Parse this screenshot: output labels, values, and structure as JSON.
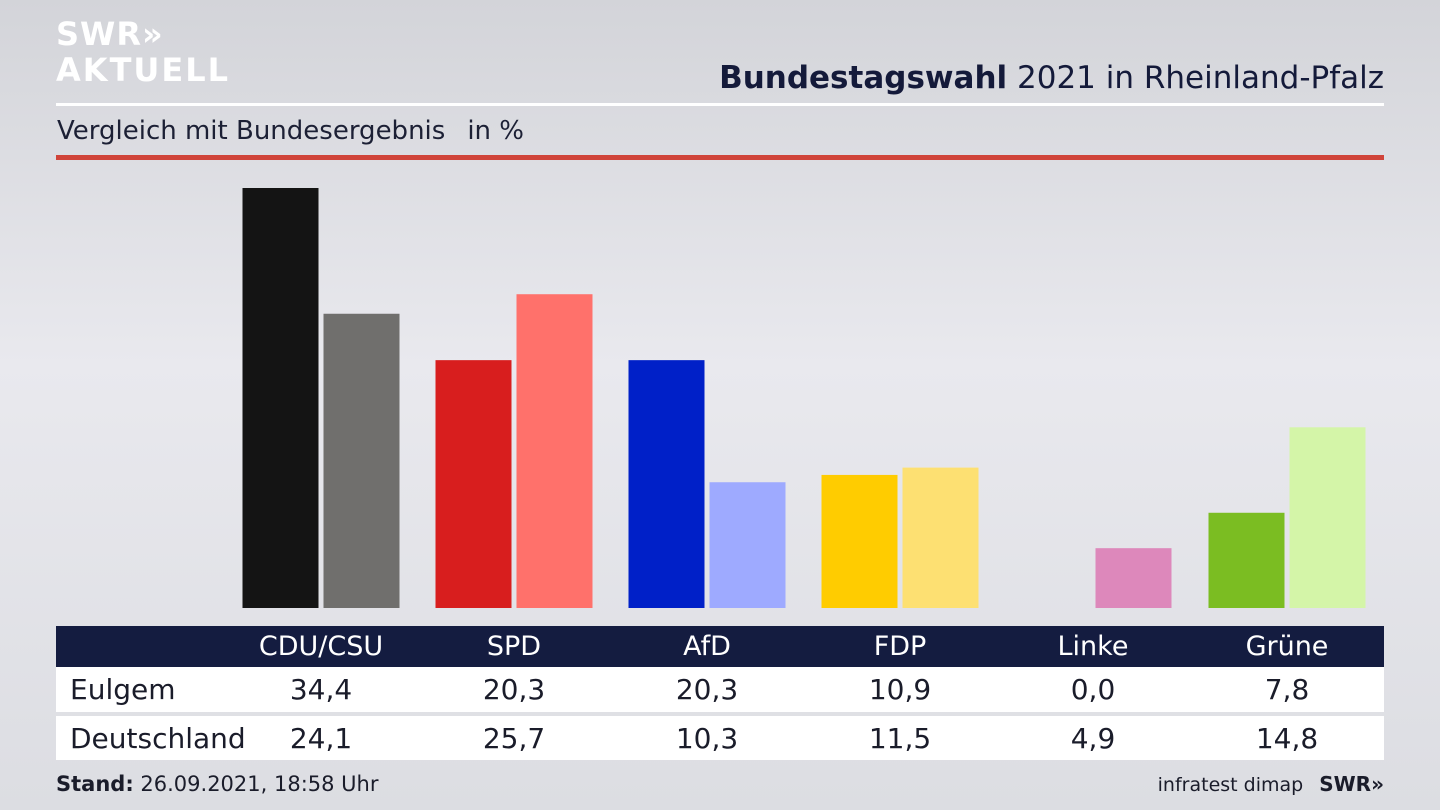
{
  "logo": {
    "line1": "SWR»",
    "line2": "AKTUELL"
  },
  "header": {
    "title_bold": "Bundestagswahl",
    "title_rest": " 2021 in Rheinland-Pfalz"
  },
  "subtitle": {
    "text": "Vergleich mit Bundesergebnis",
    "unit": "in %"
  },
  "colors": {
    "accent_line": "#d0443a",
    "table_header": "#141c40"
  },
  "chart_data": {
    "type": "bar",
    "categories": [
      "CDU/CSU",
      "SPD",
      "AfD",
      "FDP",
      "Linke",
      "Grüne"
    ],
    "series": [
      {
        "name": "Eulgem",
        "values": [
          34.4,
          20.3,
          20.3,
          10.9,
          0.0,
          7.8
        ],
        "colors": [
          "#141414",
          "#d81e1e",
          "#0020c8",
          "#ffcc00",
          "#dd88bb",
          "#7bbd22"
        ]
      },
      {
        "name": "Deutschland",
        "values": [
          24.1,
          25.7,
          10.3,
          11.5,
          4.9,
          14.8
        ],
        "colors": [
          "#706f6d",
          "#ff716b",
          "#9eaaff",
          "#fde072",
          "#dd88bb",
          "#d4f5a8"
        ]
      }
    ],
    "ylim": [
      0,
      34.4
    ],
    "grid": false,
    "legend": "table below chart"
  },
  "table": {
    "headers": [
      "CDU/CSU",
      "SPD",
      "AfD",
      "FDP",
      "Linke",
      "Grüne"
    ],
    "rows": [
      {
        "label": "Eulgem",
        "values": [
          "34,4",
          "20,3",
          "20,3",
          "10,9",
          "0,0",
          "7,8"
        ]
      },
      {
        "label": "Deutschland",
        "values": [
          "24,1",
          "25,7",
          "10,3",
          "11,5",
          "4,9",
          "14,8"
        ]
      }
    ]
  },
  "footer": {
    "stand_label": "Stand:",
    "stand_value": " 26.09.2021, 18:58 Uhr",
    "source": "infratest dimap",
    "brand": "SWR»"
  }
}
